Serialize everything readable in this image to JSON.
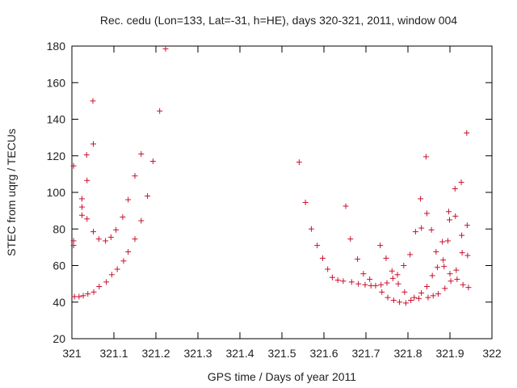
{
  "chart_data": {
    "type": "scatter",
    "title": "Rec. cedu (Lon=133, Lat=-31, h=HE), days 320-321, 2011, window 004",
    "xlabel": "GPS time / Days of year 2011",
    "ylabel": "STEC from uqrg / TECUs",
    "xlim": [
      321,
      322
    ],
    "ylim": [
      20,
      180
    ],
    "xticks": [
      "321",
      "321.1",
      "321.2",
      "321.3",
      "321.4",
      "321.5",
      "321.6",
      "321.7",
      "321.8",
      "321.9",
      "322"
    ],
    "xtick_values": [
      321,
      321.1,
      321.2,
      321.3,
      321.4,
      321.5,
      321.6,
      321.7,
      321.8,
      321.9,
      322
    ],
    "yticks": [
      "20",
      "40",
      "60",
      "80",
      "100",
      "120",
      "140",
      "160",
      "180"
    ],
    "ytick_values": [
      20,
      40,
      60,
      80,
      100,
      120,
      140,
      160,
      180
    ],
    "grid": false,
    "marker_color": "#c8102e",
    "marker": "plus",
    "points": [
      [
        321.004,
        114.5
      ],
      [
        321.004,
        73.5
      ],
      [
        321.004,
        71.0
      ],
      [
        321.006,
        43.0
      ],
      [
        321.017,
        43.0
      ],
      [
        321.024,
        96.5
      ],
      [
        321.024,
        92.0
      ],
      [
        321.024,
        87.5
      ],
      [
        321.027,
        43.5
      ],
      [
        321.035,
        120.5
      ],
      [
        321.036,
        106.5
      ],
      [
        321.036,
        85.5
      ],
      [
        321.038,
        44.5
      ],
      [
        321.05,
        150.0
      ],
      [
        321.051,
        126.5
      ],
      [
        321.051,
        78.5
      ],
      [
        321.052,
        45.5
      ],
      [
        321.064,
        74.5
      ],
      [
        321.065,
        48.5
      ],
      [
        321.08,
        73.5
      ],
      [
        321.082,
        51.0
      ],
      [
        321.093,
        75.5
      ],
      [
        321.095,
        55.0
      ],
      [
        321.105,
        79.5
      ],
      [
        321.108,
        58.0
      ],
      [
        321.121,
        86.5
      ],
      [
        321.123,
        62.5
      ],
      [
        321.134,
        96.0
      ],
      [
        321.134,
        67.5
      ],
      [
        321.15,
        109.0
      ],
      [
        321.15,
        74.5
      ],
      [
        321.165,
        121.0
      ],
      [
        321.165,
        84.5
      ],
      [
        321.18,
        98.0
      ],
      [
        321.193,
        117.0
      ],
      [
        321.209,
        144.5
      ],
      [
        321.223,
        178.5
      ],
      [
        321.541,
        116.5
      ],
      [
        321.556,
        94.5
      ],
      [
        321.57,
        80.0
      ],
      [
        321.584,
        71.0
      ],
      [
        321.597,
        64.0
      ],
      [
        321.609,
        58.0
      ],
      [
        321.62,
        53.5
      ],
      [
        321.633,
        52.0
      ],
      [
        321.646,
        51.5
      ],
      [
        321.652,
        92.5
      ],
      [
        321.663,
        74.5
      ],
      [
        321.666,
        51.0
      ],
      [
        321.68,
        63.5
      ],
      [
        321.682,
        50.0
      ],
      [
        321.694,
        55.5
      ],
      [
        321.698,
        49.5
      ],
      [
        321.709,
        52.5
      ],
      [
        321.712,
        49.0
      ],
      [
        321.723,
        49.0
      ],
      [
        321.734,
        71.0
      ],
      [
        321.736,
        49.5
      ],
      [
        321.738,
        45.5
      ],
      [
        321.748,
        64.0
      ],
      [
        321.75,
        50.5
      ],
      [
        321.752,
        42.5
      ],
      [
        321.762,
        57.0
      ],
      [
        321.764,
        53.0
      ],
      [
        321.766,
        41.0
      ],
      [
        321.775,
        55.0
      ],
      [
        321.777,
        50.0
      ],
      [
        321.78,
        40.0
      ],
      [
        321.79,
        60.0
      ],
      [
        321.792,
        45.5
      ],
      [
        321.795,
        39.5
      ],
      [
        321.805,
        66.0
      ],
      [
        321.807,
        41.0
      ],
      [
        321.815,
        42.5
      ],
      [
        321.818,
        78.5
      ],
      [
        321.826,
        42.0
      ],
      [
        321.83,
        96.5
      ],
      [
        321.832,
        80.5
      ],
      [
        321.832,
        45.0
      ],
      [
        321.843,
        119.5
      ],
      [
        321.845,
        88.5
      ],
      [
        321.845,
        48.5
      ],
      [
        321.848,
        42.5
      ],
      [
        321.856,
        79.5
      ],
      [
        321.858,
        54.5
      ],
      [
        321.86,
        43.5
      ],
      [
        321.867,
        67.5
      ],
      [
        321.87,
        59.0
      ],
      [
        321.872,
        44.5
      ],
      [
        321.882,
        73.0
      ],
      [
        321.884,
        63.0
      ],
      [
        321.886,
        59.5
      ],
      [
        321.888,
        47.5
      ],
      [
        321.895,
        73.5
      ],
      [
        321.897,
        89.5
      ],
      [
        321.899,
        85.0
      ],
      [
        321.9,
        55.5
      ],
      [
        321.902,
        51.5
      ],
      [
        321.912,
        102.0
      ],
      [
        321.913,
        87.0
      ],
      [
        321.915,
        57.5
      ],
      [
        321.917,
        52.5
      ],
      [
        321.927,
        105.5
      ],
      [
        321.928,
        76.5
      ],
      [
        321.929,
        67.0
      ],
      [
        321.931,
        49.5
      ],
      [
        321.94,
        132.5
      ],
      [
        321.941,
        82.0
      ],
      [
        321.942,
        65.5
      ],
      [
        321.944,
        48.0
      ]
    ]
  }
}
